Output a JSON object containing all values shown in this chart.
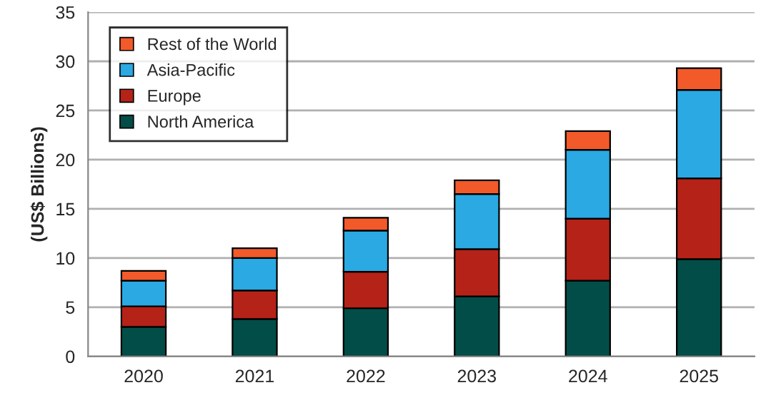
{
  "chart_data": {
    "type": "bar",
    "stacked": true,
    "ylabel": "(US$ Billions)",
    "categories": [
      "2020",
      "2021",
      "2022",
      "2023",
      "2024",
      "2025"
    ],
    "series": [
      {
        "name": "North America",
        "color": "#024d47",
        "values": [
          3.0,
          3.8,
          4.9,
          6.1,
          7.7,
          9.9
        ]
      },
      {
        "name": "Europe",
        "color": "#b52218",
        "values": [
          2.1,
          2.9,
          3.7,
          4.8,
          6.3,
          8.2
        ]
      },
      {
        "name": "Asia-Pacific",
        "color": "#2aa9e2",
        "values": [
          2.6,
          3.3,
          4.2,
          5.6,
          7.0,
          9.0
        ]
      },
      {
        "name": "Rest of the World",
        "color": "#f25a2a",
        "values": [
          1.0,
          1.0,
          1.3,
          1.4,
          1.9,
          2.2
        ]
      }
    ],
    "ylim": [
      0,
      35
    ],
    "yticks": [
      0,
      5,
      10,
      15,
      20,
      25,
      30,
      35
    ],
    "grid": "y",
    "legend": "top left"
  }
}
